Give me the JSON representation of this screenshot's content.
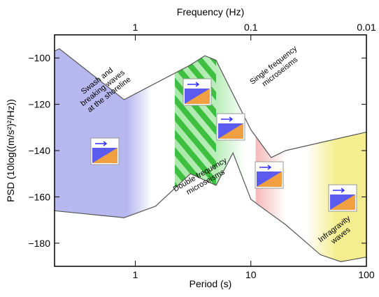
{
  "chart_data": {
    "type": "line",
    "x_label": "Period (s)",
    "x2_label": "Frequency (Hz)",
    "y_label": "PSD (10log((m/s²)²/Hz))",
    "xlim": [
      0.2,
      100
    ],
    "log_x": true,
    "xticks": [
      1,
      10,
      100
    ],
    "x2ticks": [
      1,
      0.1,
      0.01
    ],
    "ylim": [
      -190,
      -90
    ],
    "yticks": [
      {
        "value": -100,
        "label": "−100"
      },
      {
        "value": -120,
        "label": "−120"
      },
      {
        "value": -140,
        "label": "−140"
      },
      {
        "value": -160,
        "label": "−160"
      },
      {
        "value": -180,
        "label": "−180"
      }
    ],
    "series": [
      {
        "color": "#555555",
        "x": [
          0.2,
          0.22,
          0.8,
          3,
          4,
          5,
          10,
          15,
          20,
          100
        ],
        "values": [
          -97,
          -96,
          -118,
          -103,
          -99,
          -101,
          -131,
          -143,
          -140,
          -132
        ]
      },
      {
        "color": "#555555",
        "x": [
          0.2,
          0.8,
          1.5,
          3,
          5,
          7,
          10,
          12,
          20,
          40,
          60,
          100
        ],
        "values": [
          -166,
          -169,
          -164,
          -150,
          -155,
          -141,
          -161,
          -164,
          -172,
          -185,
          -188,
          -186
        ]
      }
    ],
    "regions": [
      {
        "label": [
          "Swash and",
          "breaking waves",
          "at the shoreline"
        ],
        "xrange": [
          0.2,
          1.4
        ],
        "color": "#b8b8f0"
      },
      {
        "label": [
          "Double frequency",
          "microseisms"
        ],
        "xrange": [
          2.2,
          9
        ],
        "hatch_xrange": [
          2.2,
          5
        ],
        "color": "#9ee69e"
      },
      {
        "label": [
          "Single frequency",
          "microseisms"
        ],
        "xrange": [
          11,
          20
        ],
        "color": "#f6b8b8"
      },
      {
        "label": [
          "Infragravity",
          "waves"
        ],
        "xrange": [
          30,
          100
        ],
        "color": "#f4ee90"
      }
    ]
  }
}
